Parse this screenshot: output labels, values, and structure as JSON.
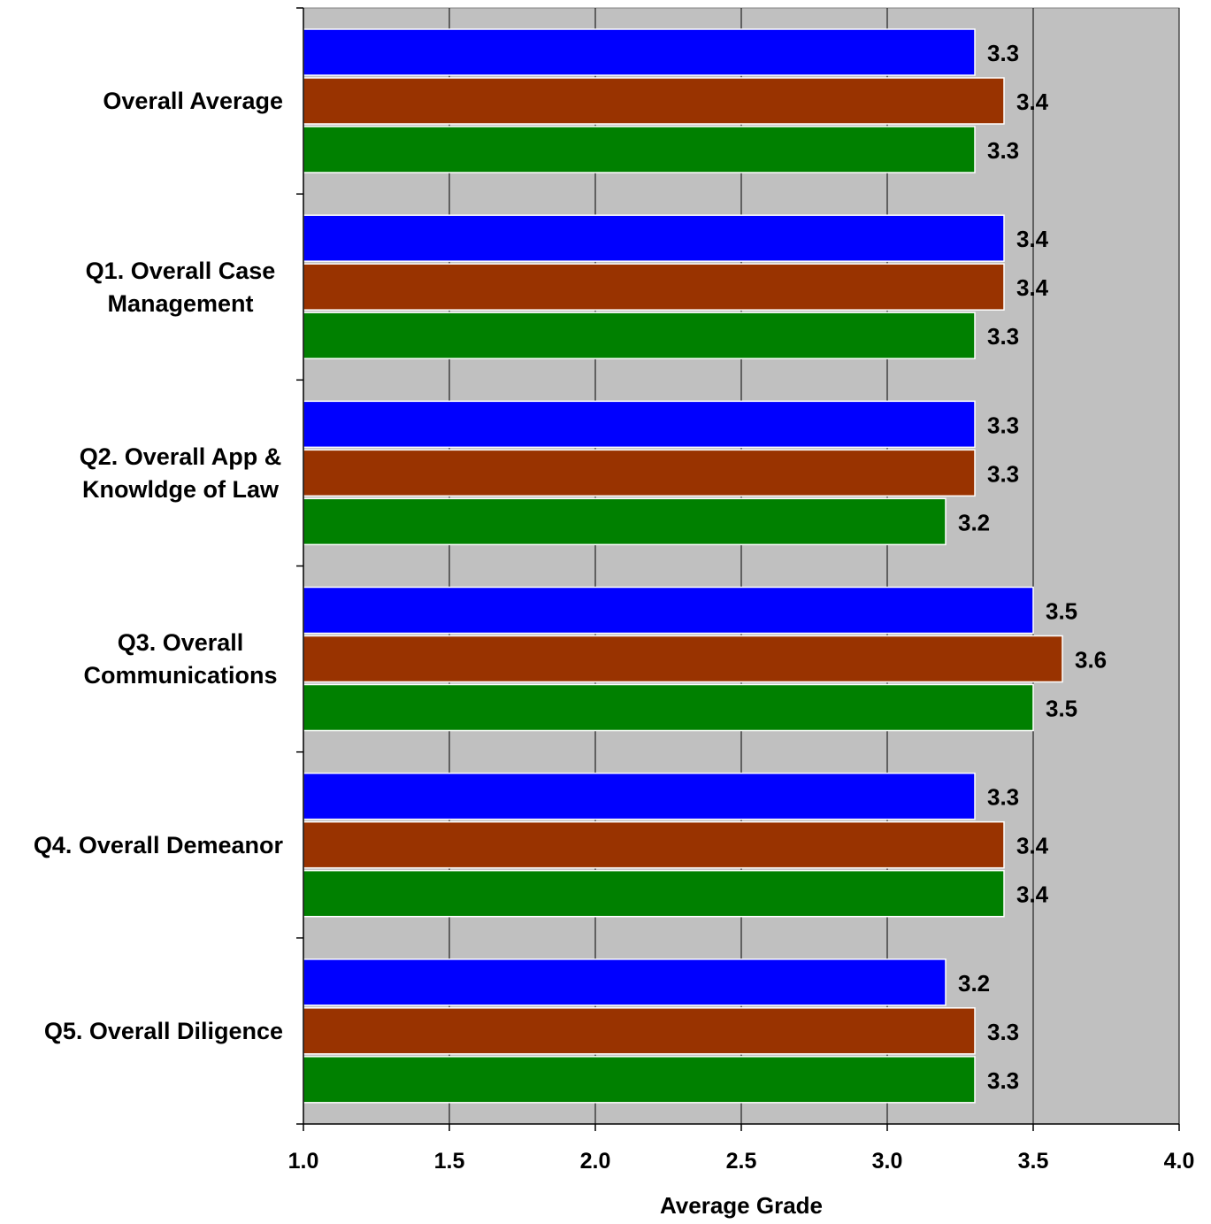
{
  "chart_data": {
    "type": "bar",
    "orientation": "horizontal",
    "categories": [
      "Overall Average",
      "Q1. Overall Case Management",
      "Q2. Overall App & Knowldge of Law",
      "Q3. Overall Communications",
      "Q4. Overall Demeanor",
      "Q5. Overall Diligence"
    ],
    "category_lines": [
      [
        "Overall Average"
      ],
      [
        "Q1. Overall Case",
        "Management"
      ],
      [
        "Q2. Overall App &",
        "Knowldge of Law"
      ],
      [
        "Q3. Overall",
        "Communications"
      ],
      [
        "Q4. Overall Demeanor"
      ],
      [
        "Q5. Overall Diligence"
      ]
    ],
    "series": [
      {
        "color": "#0000ff",
        "values": [
          3.3,
          3.4,
          3.3,
          3.5,
          3.3,
          3.2
        ]
      },
      {
        "color": "#993300",
        "values": [
          3.4,
          3.4,
          3.3,
          3.6,
          3.4,
          3.3
        ]
      },
      {
        "color": "#008000",
        "values": [
          3.3,
          3.3,
          3.2,
          3.5,
          3.4,
          3.3
        ]
      }
    ],
    "data_labels": [
      [
        "3.3",
        "3.4",
        "3.3"
      ],
      [
        "3.4",
        "3.4",
        "3.3"
      ],
      [
        "3.3",
        "3.3",
        "3.2"
      ],
      [
        "3.5",
        "3.6",
        "3.5"
      ],
      [
        "3.3",
        "3.4",
        "3.4"
      ],
      [
        "3.2",
        "3.3",
        "3.3"
      ]
    ],
    "xlim": [
      1.0,
      4.0
    ],
    "x_ticks": [
      1.0,
      1.5,
      2.0,
      2.5,
      3.0,
      3.5,
      4.0
    ],
    "x_tick_labels": [
      "1.0",
      "1.5",
      "2.0",
      "2.5",
      "3.0",
      "3.5",
      "4.0"
    ],
    "xlabel": "Average Grade",
    "ylabel": "",
    "title": "",
    "grid": "vertical",
    "plot_background": "#c0c0c0",
    "legend": "none"
  }
}
